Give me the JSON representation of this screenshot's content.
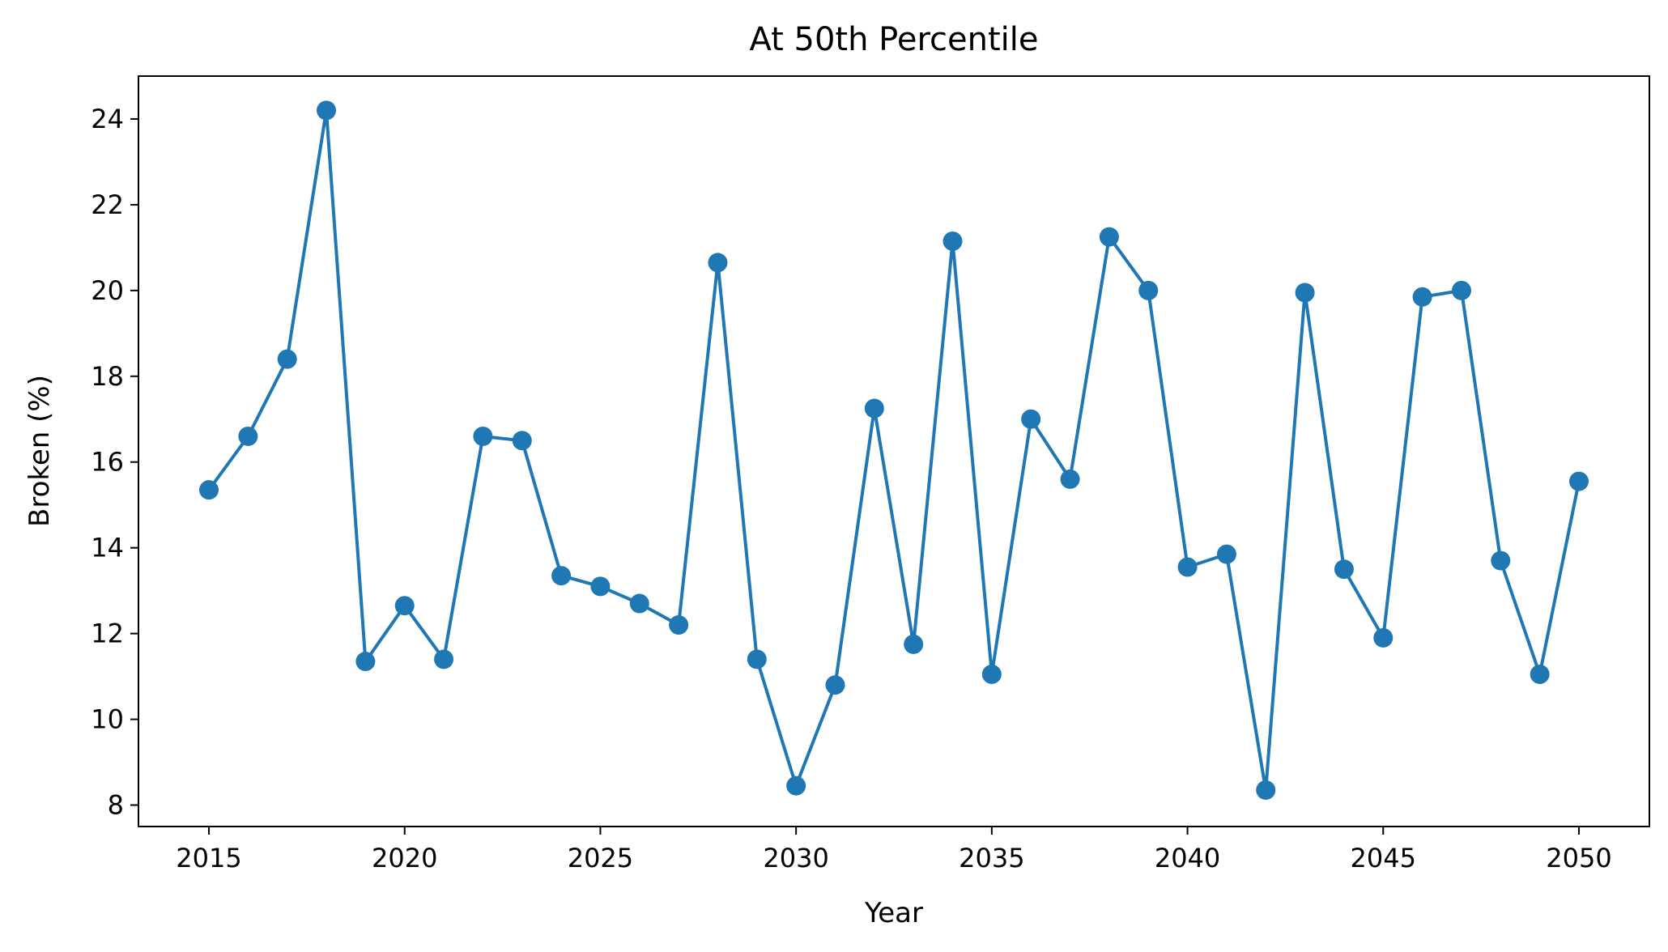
{
  "chart_data": {
    "type": "line",
    "title": "At 50th Percentile",
    "xlabel": "Year",
    "ylabel": "Broken (%)",
    "xlim": [
      2013.2,
      2051.8
    ],
    "ylim": [
      7.5,
      25.0
    ],
    "xticks": [
      2015,
      2020,
      2025,
      2030,
      2035,
      2040,
      2045,
      2050
    ],
    "yticks": [
      8,
      10,
      12,
      14,
      16,
      18,
      20,
      22,
      24
    ],
    "grid": false,
    "line_color": "#1f77b4",
    "series": [
      {
        "x": [
          2015,
          2016,
          2017,
          2018,
          2019,
          2020,
          2021,
          2022,
          2023,
          2024,
          2025,
          2026,
          2027,
          2028,
          2029,
          2030,
          2031,
          2032,
          2033,
          2034,
          2035,
          2036,
          2037,
          2038,
          2039,
          2040,
          2041,
          2042,
          2043,
          2044,
          2045,
          2046,
          2047,
          2048,
          2049,
          2050
        ],
        "y": [
          15.35,
          16.6,
          18.4,
          24.2,
          11.35,
          12.65,
          11.4,
          16.6,
          16.5,
          13.35,
          13.1,
          12.7,
          12.2,
          20.65,
          11.4,
          8.45,
          10.8,
          17.25,
          11.75,
          21.15,
          11.05,
          17.0,
          15.6,
          21.25,
          20.0,
          13.55,
          13.85,
          8.35,
          19.95,
          13.5,
          11.9,
          19.85,
          20.0,
          13.7,
          11.05,
          15.55
        ]
      }
    ]
  }
}
